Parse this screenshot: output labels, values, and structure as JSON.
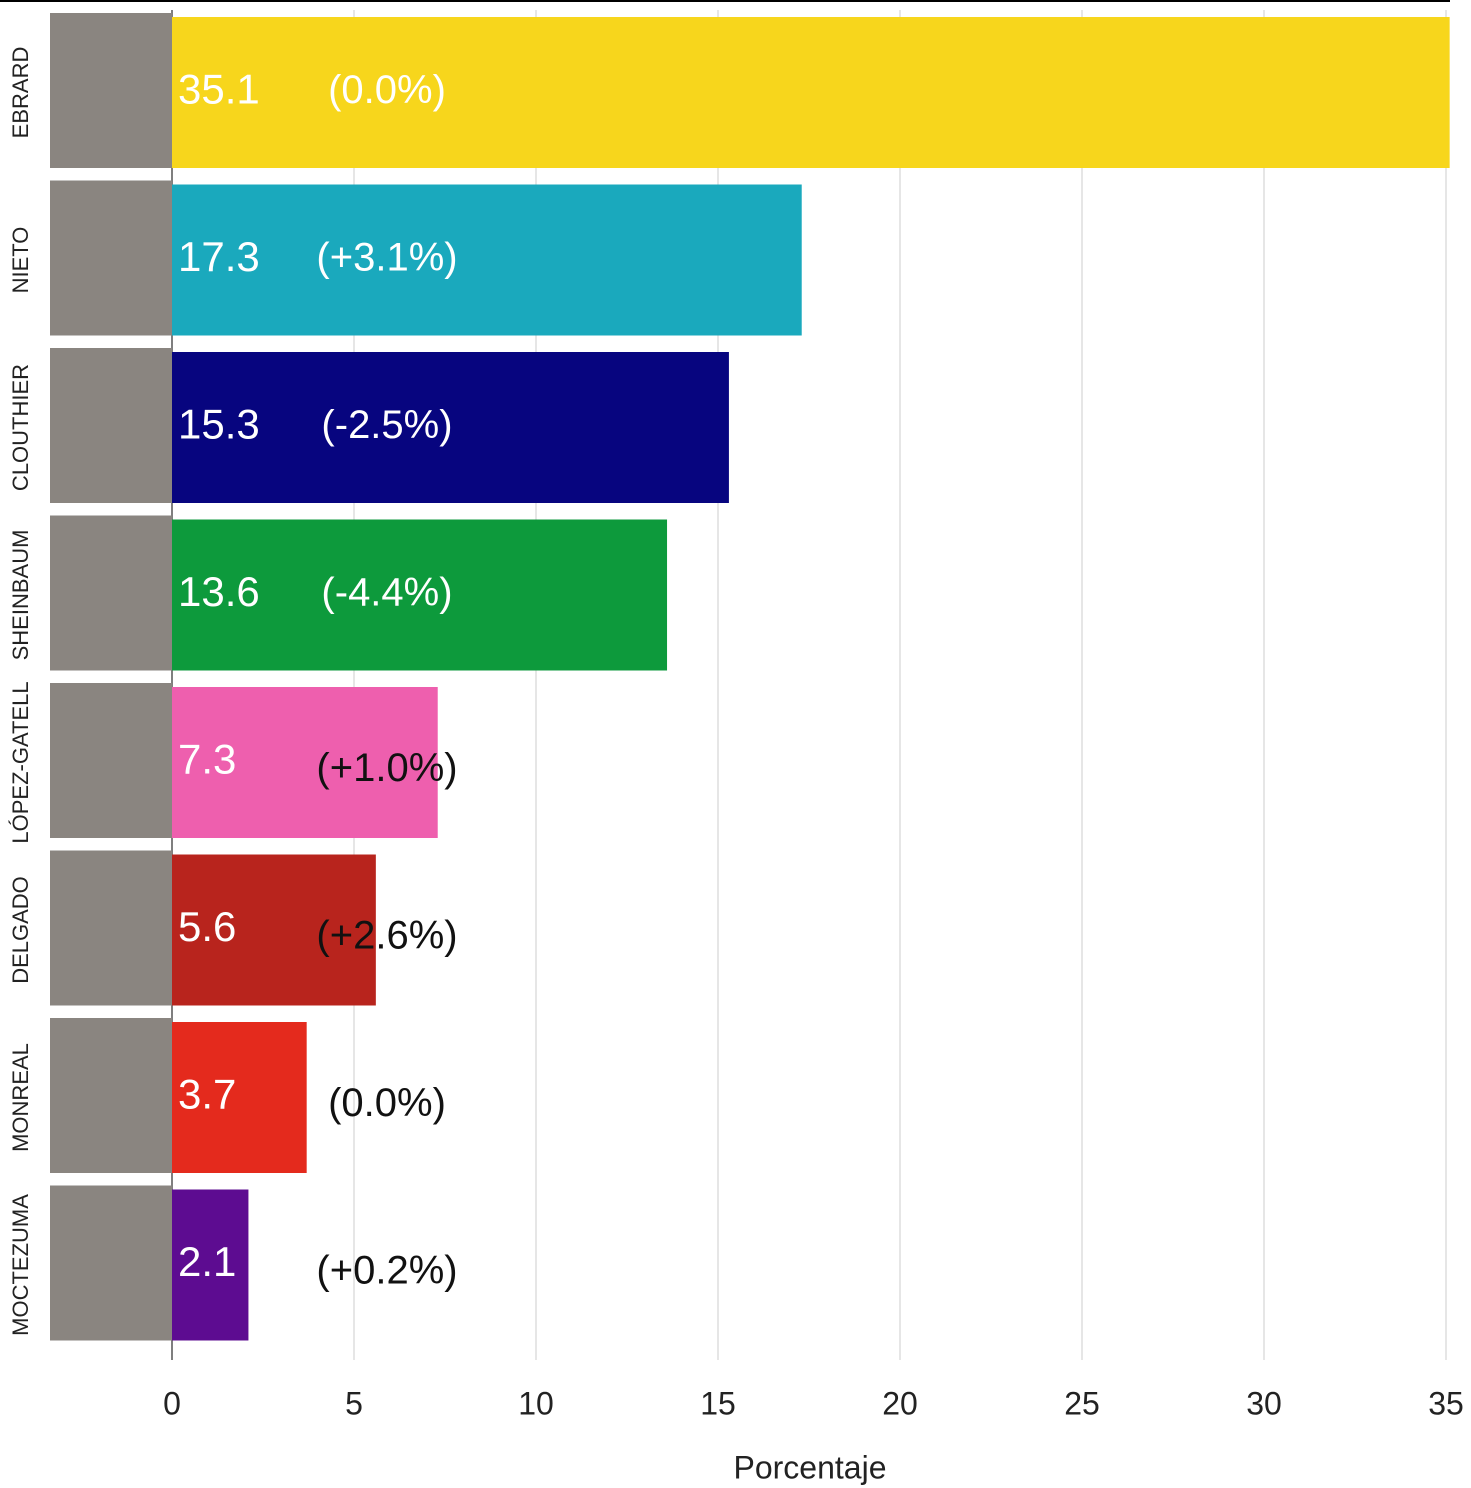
{
  "chart_data": {
    "type": "hbar",
    "categories": [
      "EBRARD",
      "NIETO",
      "CLOUTHIER",
      "SHEINBAUM",
      "LÓPEZ-GATELL",
      "DELGADO",
      "MONREAL",
      "MOCTEZUMA"
    ],
    "values": [
      35.1,
      17.3,
      15.3,
      13.6,
      7.3,
      5.6,
      3.7,
      2.1
    ],
    "annotations": [
      "(0.0%)",
      "(+3.1%)",
      "(-2.5%)",
      "(-4.4%)",
      "(+1.0%)",
      "(+2.6%)",
      "(0.0%)",
      "(+0.2%)"
    ],
    "colors": [
      "#f7d61c",
      "#1aa9bd",
      "#07057f",
      "#0d9a3c",
      "#ee5fae",
      "#b8241d",
      "#e42a1d",
      "#5d0c91"
    ],
    "xlabel": "Porcentaje",
    "xlim": [
      0,
      35
    ],
    "xticks": [
      0,
      5,
      10,
      15,
      20,
      25,
      30,
      35
    ],
    "grid": true
  }
}
